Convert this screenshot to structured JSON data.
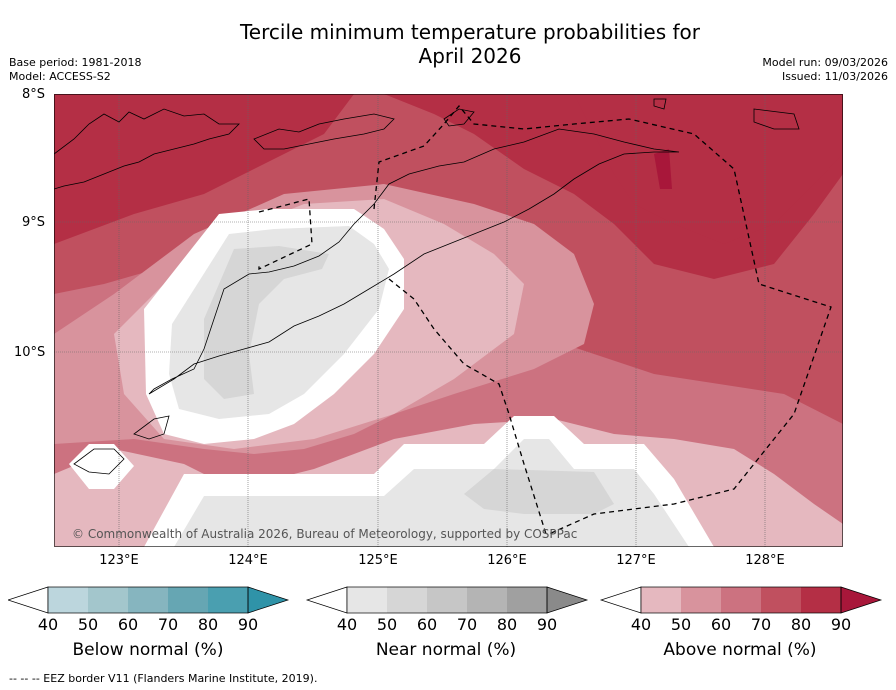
{
  "title_line1": "Tercile minimum temperature probabilities for",
  "title_line2": "April 2026",
  "base_period": "Base period: 1981-2018",
  "model": "Model: ACCESS-S2",
  "model_run": "Model run: 09/03/2026",
  "issued": "Issued: 11/03/2026",
  "lat_labels": [
    "8°S",
    "9°S",
    "10°S"
  ],
  "lon_labels": [
    "123°E",
    "124°E",
    "125°E",
    "126°E",
    "127°E",
    "128°E"
  ],
  "copyright": "© Commonwealth of Australia 2026, Bureau of Meteorology, supported by COSPPac",
  "colorbars": [
    {
      "label": "Below normal (%)",
      "ticks": [
        "40",
        "50",
        "60",
        "70",
        "80",
        "90"
      ],
      "colors": [
        "#ffffff",
        "#bcd6dd",
        "#a3c6cc",
        "#86b5bf",
        "#66a6b3",
        "#4a9fb0",
        "#2f93a8"
      ]
    },
    {
      "label": "Near normal (%)",
      "ticks": [
        "40",
        "50",
        "60",
        "70",
        "80",
        "90"
      ],
      "colors": [
        "#ffffff",
        "#e6e6e6",
        "#d6d6d6",
        "#c6c6c6",
        "#b4b4b4",
        "#a0a0a0",
        "#8a8a8a"
      ]
    },
    {
      "label": "Above normal (%)",
      "ticks": [
        "40",
        "50",
        "60",
        "70",
        "80",
        "90"
      ],
      "colors": [
        "#ffffff",
        "#e5b8bf",
        "#d8939d",
        "#cc7280",
        "#c0505f",
        "#b42f45",
        "#a8173a"
      ]
    }
  ],
  "footer": "--  --  -- EEZ border V11 (Flanders Marine Institute, 2019)."
}
